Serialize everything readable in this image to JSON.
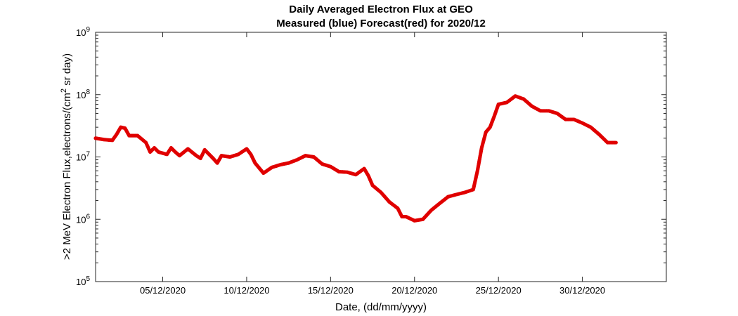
{
  "chart_data": {
    "type": "scatter",
    "title": "Daily Averaged Electron Flux at GEO",
    "subtitle": "Measured (blue) Forecast(red) for 2020/12",
    "xlabel": "Date, (dd/mm/yyyy)",
    "ylabel_main": ">2 MeV Electron Flux,electrons/(cm",
    "ylabel_sup": "2",
    "ylabel_tail": " sr day)",
    "y_scale": "log",
    "ylim": [
      100000,
      1000000000
    ],
    "xlim": [
      "2020-12-01",
      "2021-01-04"
    ],
    "x_tick_labels": [
      "05/12/2020",
      "10/12/2020",
      "15/12/2020",
      "20/12/2020",
      "25/12/2020",
      "30/12/2020"
    ],
    "x_tick_values": [
      "2020-12-05",
      "2020-12-10",
      "2020-12-15",
      "2020-12-20",
      "2020-12-25",
      "2020-12-30"
    ],
    "y_tick_base": "10",
    "y_tick_exponents": [
      "5",
      "6",
      "7",
      "8",
      "9"
    ],
    "grid": false,
    "series": [
      {
        "color": "#e00000",
        "points": [
          [
            "2020-12-01 00:00",
            20000000.0
          ],
          [
            "2020-12-01 12:00",
            19000000.0
          ],
          [
            "2020-12-02 00:00",
            18500000.0
          ],
          [
            "2020-12-02 06:00",
            23000000.0
          ],
          [
            "2020-12-02 12:00",
            30000000.0
          ],
          [
            "2020-12-02 18:00",
            29000000.0
          ],
          [
            "2020-12-03 00:00",
            22000000.0
          ],
          [
            "2020-12-03 12:00",
            22000000.0
          ],
          [
            "2020-12-04 00:00",
            17000000.0
          ],
          [
            "2020-12-04 06:00",
            12000000.0
          ],
          [
            "2020-12-04 12:00",
            14000000.0
          ],
          [
            "2020-12-04 18:00",
            12000000.0
          ],
          [
            "2020-12-05 00:00",
            11500000.0
          ],
          [
            "2020-12-05 06:00",
            11000000.0
          ],
          [
            "2020-12-05 12:00",
            14000000.0
          ],
          [
            "2020-12-05 18:00",
            12000000.0
          ],
          [
            "2020-12-06 00:00",
            10500000.0
          ],
          [
            "2020-12-06 12:00",
            13500000.0
          ],
          [
            "2020-12-07 00:00",
            10500000.0
          ],
          [
            "2020-12-07 06:00",
            9500000.0
          ],
          [
            "2020-12-07 12:00",
            13000000.0
          ],
          [
            "2020-12-08 00:00",
            9500000.0
          ],
          [
            "2020-12-08 06:00",
            8000000.0
          ],
          [
            "2020-12-08 12:00",
            10500000.0
          ],
          [
            "2020-12-09 00:00",
            10000000.0
          ],
          [
            "2020-12-09 12:00",
            11000000.0
          ],
          [
            "2020-12-10 00:00",
            13500000.0
          ],
          [
            "2020-12-10 06:00",
            11000000.0
          ],
          [
            "2020-12-10 12:00",
            8000000.0
          ],
          [
            "2020-12-11 00:00",
            5500000.0
          ],
          [
            "2020-12-11 12:00",
            6800000.0
          ],
          [
            "2020-12-12 00:00",
            7500000.0
          ],
          [
            "2020-12-12 12:00",
            8000000.0
          ],
          [
            "2020-12-13 00:00",
            9000000.0
          ],
          [
            "2020-12-13 12:00",
            10500000.0
          ],
          [
            "2020-12-14 00:00",
            10000000.0
          ],
          [
            "2020-12-14 12:00",
            7700000.0
          ],
          [
            "2020-12-15 00:00",
            7000000.0
          ],
          [
            "2020-12-15 12:00",
            5800000.0
          ],
          [
            "2020-12-16 00:00",
            5700000.0
          ],
          [
            "2020-12-16 12:00",
            5200000.0
          ],
          [
            "2020-12-17 00:00",
            6500000.0
          ],
          [
            "2020-12-17 06:00",
            5000000.0
          ],
          [
            "2020-12-17 12:00",
            3500000.0
          ],
          [
            "2020-12-18 00:00",
            2700000.0
          ],
          [
            "2020-12-18 12:00",
            1900000.0
          ],
          [
            "2020-12-19 00:00",
            1500000.0
          ],
          [
            "2020-12-19 06:00",
            1100000.0
          ],
          [
            "2020-12-19 12:00",
            1100000.0
          ],
          [
            "2020-12-20 00:00",
            950000.0
          ],
          [
            "2020-12-20 12:00",
            1000000.0
          ],
          [
            "2020-12-21 00:00",
            1400000.0
          ],
          [
            "2020-12-21 12:00",
            1800000.0
          ],
          [
            "2020-12-22 00:00",
            2300000.0
          ],
          [
            "2020-12-22 12:00",
            2500000.0
          ],
          [
            "2020-12-23 00:00",
            2700000.0
          ],
          [
            "2020-12-23 12:00",
            3000000.0
          ],
          [
            "2020-12-23 18:00",
            6000000.0
          ],
          [
            "2020-12-24 00:00",
            14000000.0
          ],
          [
            "2020-12-24 06:00",
            25000000.0
          ],
          [
            "2020-12-24 12:00",
            30000000.0
          ],
          [
            "2020-12-24 18:00",
            45000000.0
          ],
          [
            "2020-12-25 00:00",
            70000000.0
          ],
          [
            "2020-12-25 12:00",
            75000000.0
          ],
          [
            "2020-12-26 00:00",
            95000000.0
          ],
          [
            "2020-12-26 12:00",
            85000000.0
          ],
          [
            "2020-12-27 00:00",
            65000000.0
          ],
          [
            "2020-12-27 12:00",
            55000000.0
          ],
          [
            "2020-12-28 00:00",
            55000000.0
          ],
          [
            "2020-12-28 12:00",
            50000000.0
          ],
          [
            "2020-12-29 00:00",
            40000000.0
          ],
          [
            "2020-12-29 12:00",
            40000000.0
          ],
          [
            "2020-12-30 00:00",
            35000000.0
          ],
          [
            "2020-12-30 12:00",
            30000000.0
          ],
          [
            "2020-12-31 00:00",
            23000000.0
          ],
          [
            "2020-12-31 12:00",
            17000000.0
          ],
          [
            "2021-01-01 00:00",
            17000000.0
          ]
        ]
      }
    ]
  }
}
